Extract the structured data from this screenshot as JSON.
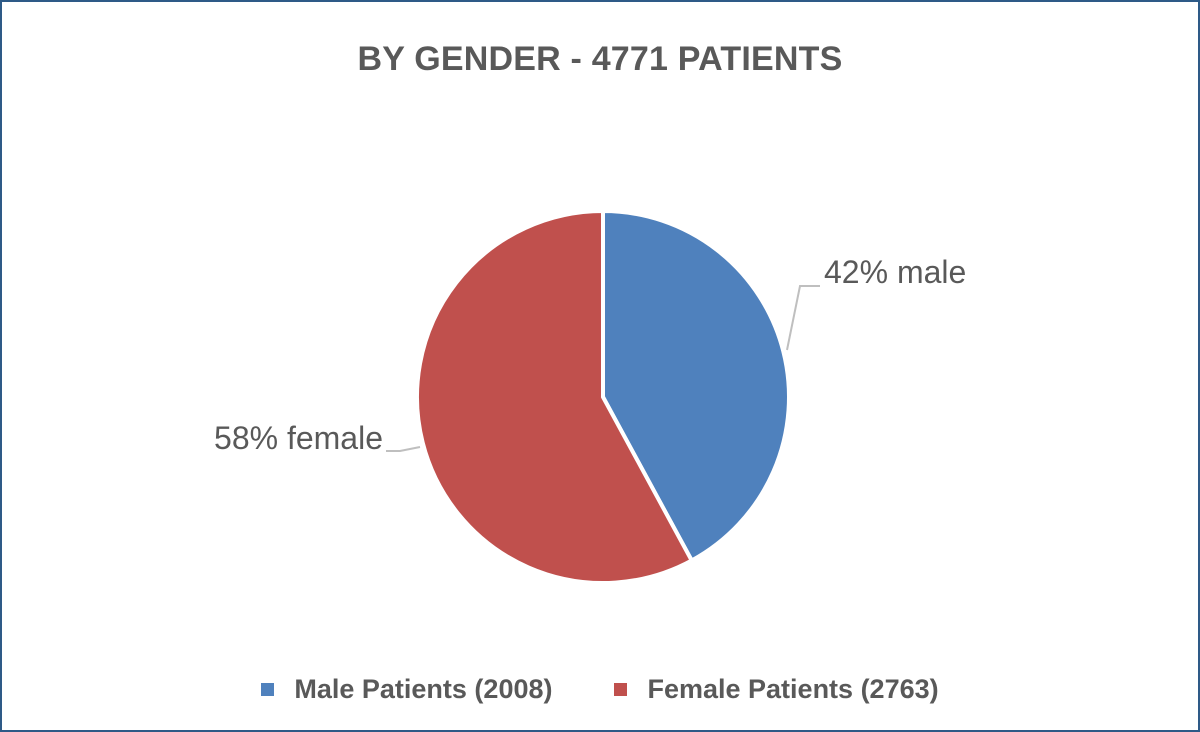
{
  "chart_data": {
    "type": "pie",
    "title": "BY GENDER - 4771 PATIENTS",
    "slices": [
      {
        "name": "Male Patients (2008)",
        "value": 2008,
        "data_label": "42% male",
        "color": "#4f81bd"
      },
      {
        "name": "Female Patients (2763)",
        "value": 2763,
        "data_label": "58% female",
        "color": "#c0504d"
      }
    ],
    "legend_position": "bottom",
    "start_angle": "12 o'clock, clockwise"
  }
}
